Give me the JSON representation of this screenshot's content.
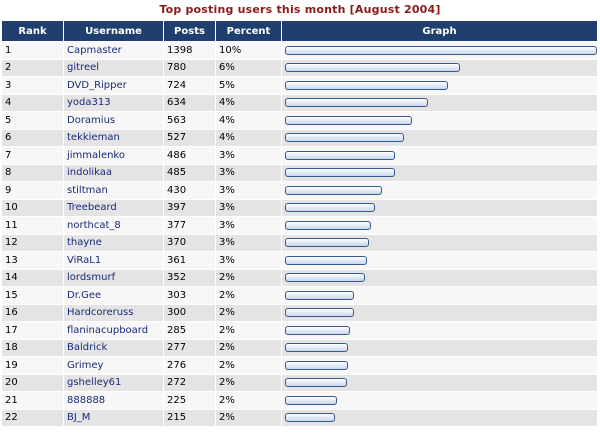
{
  "title": "Top posting users this month [August 2004]",
  "headers": {
    "rank": "Rank",
    "username": "Username",
    "posts": "Posts",
    "percent": "Percent",
    "graph": "Graph"
  },
  "colors": {
    "header_bg": "#1f3f6f",
    "title": "#8b1a1a",
    "username_link": "#1a2a78",
    "bar_border": "#355b8e"
  },
  "max_posts": 1398,
  "rows": [
    {
      "rank": "1",
      "username": "Capmaster",
      "posts": "1398",
      "percent": "10%",
      "value": 1398
    },
    {
      "rank": "2",
      "username": "gitreel",
      "posts": "780",
      "percent": "6%",
      "value": 780
    },
    {
      "rank": "3",
      "username": "DVD_Ripper",
      "posts": "724",
      "percent": "5%",
      "value": 724
    },
    {
      "rank": "4",
      "username": "yoda313",
      "posts": "634",
      "percent": "4%",
      "value": 634
    },
    {
      "rank": "5",
      "username": "Doramius",
      "posts": "563",
      "percent": "4%",
      "value": 563
    },
    {
      "rank": "6",
      "username": "tekkieman",
      "posts": "527",
      "percent": "4%",
      "value": 527
    },
    {
      "rank": "7",
      "username": "jimmalenko",
      "posts": "486",
      "percent": "3%",
      "value": 486
    },
    {
      "rank": "8",
      "username": "indolikaa",
      "posts": "485",
      "percent": "3%",
      "value": 485
    },
    {
      "rank": "9",
      "username": "stiltman",
      "posts": "430",
      "percent": "3%",
      "value": 430
    },
    {
      "rank": "10",
      "username": "Treebeard",
      "posts": "397",
      "percent": "3%",
      "value": 397
    },
    {
      "rank": "11",
      "username": "northcat_8",
      "posts": "377",
      "percent": "3%",
      "value": 377
    },
    {
      "rank": "12",
      "username": "thayne",
      "posts": "370",
      "percent": "3%",
      "value": 370
    },
    {
      "rank": "13",
      "username": "ViRaL1",
      "posts": "361",
      "percent": "3%",
      "value": 361
    },
    {
      "rank": "14",
      "username": "lordsmurf",
      "posts": "352",
      "percent": "2%",
      "value": 352
    },
    {
      "rank": "15",
      "username": "Dr.Gee",
      "posts": "303",
      "percent": "2%",
      "value": 303
    },
    {
      "rank": "16",
      "username": "Hardcoreruss",
      "posts": "300",
      "percent": "2%",
      "value": 300
    },
    {
      "rank": "17",
      "username": "flaninacupboard",
      "posts": "285",
      "percent": "2%",
      "value": 285
    },
    {
      "rank": "18",
      "username": "Baldrick",
      "posts": "277",
      "percent": "2%",
      "value": 277
    },
    {
      "rank": "19",
      "username": "Grimey",
      "posts": "276",
      "percent": "2%",
      "value": 276
    },
    {
      "rank": "20",
      "username": "gshelley61",
      "posts": "272",
      "percent": "2%",
      "value": 272
    },
    {
      "rank": "21",
      "username": "888888",
      "posts": "225",
      "percent": "2%",
      "value": 225
    },
    {
      "rank": "22",
      "username": "BJ_M",
      "posts": "215",
      "percent": "2%",
      "value": 215
    }
  ]
}
